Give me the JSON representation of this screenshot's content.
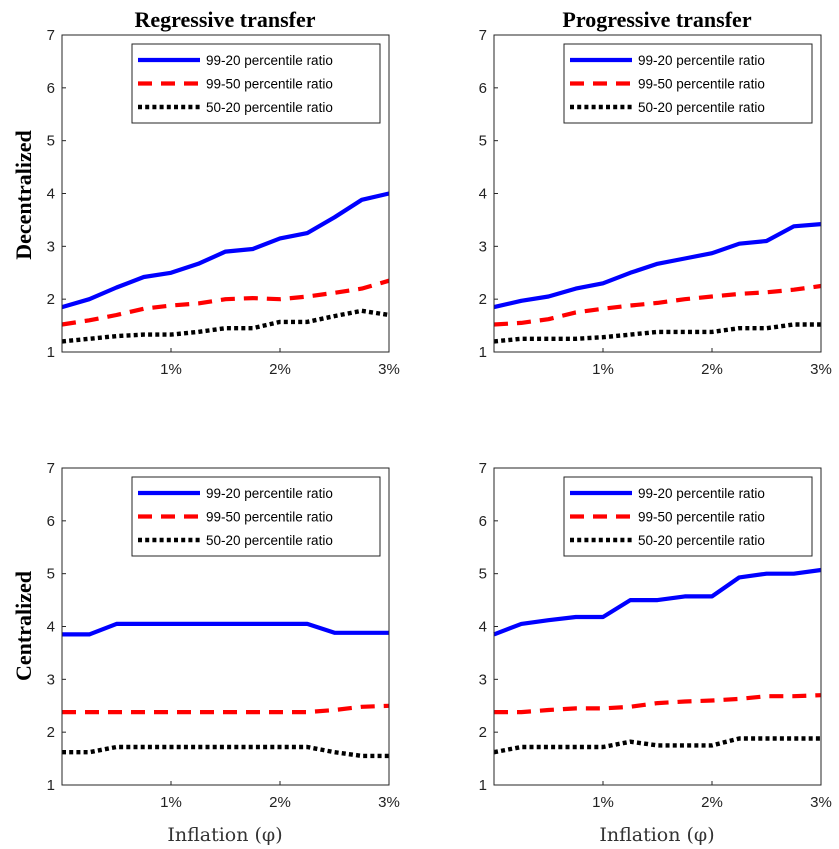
{
  "figure": {
    "col_titles": [
      "Regressive transfer",
      "Progressive transfer"
    ],
    "row_labels": [
      "Decentralized",
      "Centralized"
    ],
    "xlabel": "Inflation (φ)"
  },
  "legend": [
    {
      "name": "99-20 percentile ratio",
      "color": "#0000ff",
      "style": "solid"
    },
    {
      "name": "99-50 percentile ratio",
      "color": "#ff0000",
      "style": "dashed"
    },
    {
      "name": "50-20 percentile ratio",
      "color": "#000000",
      "style": "dotted"
    }
  ],
  "chart_data": [
    {
      "type": "line",
      "panel": "Decentralized / Regressive transfer",
      "title": "Regressive transfer",
      "ylabel": "Decentralized",
      "xlabel": "",
      "x": [
        0,
        0.25,
        0.5,
        0.75,
        1.0,
        1.25,
        1.5,
        1.75,
        2.0,
        2.25,
        2.5,
        2.75,
        3.0
      ],
      "xticks": [
        "1%",
        "2%",
        "3%"
      ],
      "yticks": [
        "1",
        "2",
        "3",
        "4",
        "5",
        "6",
        "7"
      ],
      "xlim": [
        0,
        3
      ],
      "ylim": [
        1,
        7
      ],
      "legend_position": "top-right",
      "grid": false,
      "series": [
        {
          "name": "99-20 percentile ratio",
          "values": [
            1.85,
            2.0,
            2.22,
            2.42,
            2.5,
            2.67,
            2.9,
            2.95,
            3.15,
            3.25,
            3.55,
            3.88,
            4.0
          ]
        },
        {
          "name": "99-50 percentile ratio",
          "values": [
            1.52,
            1.6,
            1.7,
            1.82,
            1.88,
            1.92,
            2.0,
            2.02,
            2.0,
            2.05,
            2.12,
            2.2,
            2.35
          ]
        },
        {
          "name": "50-20 percentile ratio",
          "values": [
            1.2,
            1.25,
            1.3,
            1.33,
            1.33,
            1.38,
            1.45,
            1.45,
            1.57,
            1.57,
            1.68,
            1.78,
            1.7
          ]
        }
      ]
    },
    {
      "type": "line",
      "panel": "Decentralized / Progressive transfer",
      "title": "Progressive transfer",
      "ylabel": "",
      "xlabel": "",
      "x": [
        0,
        0.25,
        0.5,
        0.75,
        1.0,
        1.25,
        1.5,
        1.75,
        2.0,
        2.25,
        2.5,
        2.75,
        3.0
      ],
      "xticks": [
        "1%",
        "2%",
        "3%"
      ],
      "yticks": [
        "1",
        "2",
        "3",
        "4",
        "5",
        "6",
        "7"
      ],
      "xlim": [
        0,
        3
      ],
      "ylim": [
        1,
        7
      ],
      "legend_position": "top-right",
      "grid": false,
      "series": [
        {
          "name": "99-20 percentile ratio",
          "values": [
            1.85,
            1.97,
            2.05,
            2.2,
            2.3,
            2.5,
            2.67,
            2.77,
            2.87,
            3.05,
            3.1,
            3.38,
            3.42
          ]
        },
        {
          "name": "99-50 percentile ratio",
          "values": [
            1.52,
            1.55,
            1.62,
            1.75,
            1.82,
            1.88,
            1.93,
            2.0,
            2.05,
            2.1,
            2.13,
            2.18,
            2.25
          ]
        },
        {
          "name": "50-20 percentile ratio",
          "values": [
            1.2,
            1.25,
            1.25,
            1.25,
            1.28,
            1.33,
            1.38,
            1.38,
            1.38,
            1.45,
            1.45,
            1.52,
            1.52
          ]
        }
      ]
    },
    {
      "type": "line",
      "panel": "Centralized / Regressive transfer",
      "title": "",
      "ylabel": "Centralized",
      "xlabel": "Inflation (φ)",
      "x": [
        0,
        0.25,
        0.5,
        0.75,
        1.0,
        1.25,
        1.5,
        1.75,
        2.0,
        2.25,
        2.5,
        2.75,
        3.0
      ],
      "xticks": [
        "1%",
        "2%",
        "3%"
      ],
      "yticks": [
        "1",
        "2",
        "3",
        "4",
        "5",
        "6",
        "7"
      ],
      "xlim": [
        0,
        3
      ],
      "ylim": [
        1,
        7
      ],
      "legend_position": "top-right",
      "grid": false,
      "series": [
        {
          "name": "99-20 percentile ratio",
          "values": [
            3.85,
            3.85,
            4.05,
            4.05,
            4.05,
            4.05,
            4.05,
            4.05,
            4.05,
            4.05,
            3.88,
            3.88,
            3.88
          ]
        },
        {
          "name": "99-50 percentile ratio",
          "values": [
            2.38,
            2.38,
            2.38,
            2.38,
            2.38,
            2.38,
            2.38,
            2.38,
            2.38,
            2.38,
            2.42,
            2.48,
            2.5
          ]
        },
        {
          "name": "50-20 percentile ratio",
          "values": [
            1.62,
            1.62,
            1.72,
            1.72,
            1.72,
            1.72,
            1.72,
            1.72,
            1.72,
            1.72,
            1.62,
            1.55,
            1.55
          ]
        }
      ]
    },
    {
      "type": "line",
      "panel": "Centralized / Progressive transfer",
      "title": "",
      "ylabel": "",
      "xlabel": "Inflation (φ)",
      "x": [
        0,
        0.25,
        0.5,
        0.75,
        1.0,
        1.25,
        1.5,
        1.75,
        2.0,
        2.25,
        2.5,
        2.75,
        3.0
      ],
      "xticks": [
        "1%",
        "2%",
        "3%"
      ],
      "yticks": [
        "1",
        "2",
        "3",
        "4",
        "5",
        "6",
        "7"
      ],
      "xlim": [
        0,
        3
      ],
      "ylim": [
        1,
        7
      ],
      "legend_position": "top-right",
      "grid": false,
      "series": [
        {
          "name": "99-20 percentile ratio",
          "values": [
            3.85,
            4.05,
            4.12,
            4.18,
            4.18,
            4.5,
            4.5,
            4.57,
            4.57,
            4.93,
            5.0,
            5.0,
            5.07
          ]
        },
        {
          "name": "99-50 percentile ratio",
          "values": [
            2.38,
            2.38,
            2.42,
            2.45,
            2.45,
            2.48,
            2.55,
            2.58,
            2.6,
            2.63,
            2.68,
            2.68,
            2.7
          ]
        },
        {
          "name": "50-20 percentile ratio",
          "values": [
            1.62,
            1.72,
            1.72,
            1.72,
            1.72,
            1.82,
            1.75,
            1.75,
            1.75,
            1.88,
            1.88,
            1.88,
            1.88
          ]
        }
      ]
    }
  ]
}
